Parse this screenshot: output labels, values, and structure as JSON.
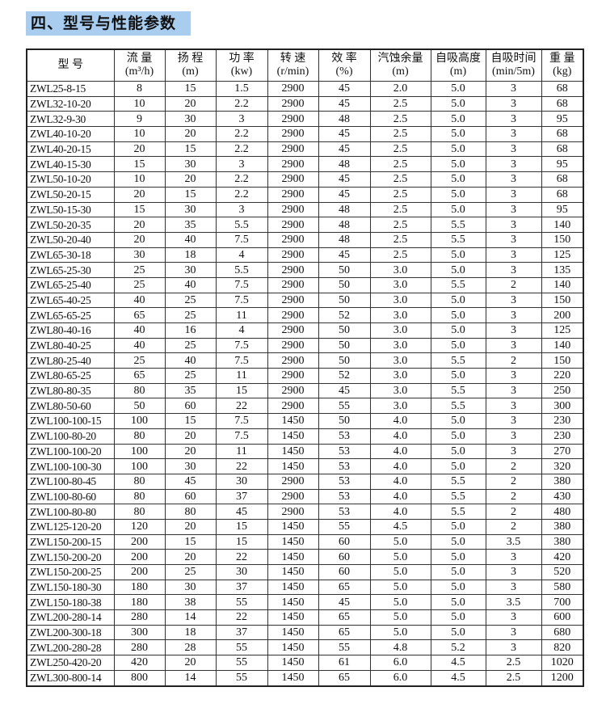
{
  "title": "四、型号与性能参数",
  "columns": [
    {
      "name": "型 号",
      "unit": ""
    },
    {
      "name": "流 量",
      "unit": "(m³/h)"
    },
    {
      "name": "扬 程",
      "unit": "(m)"
    },
    {
      "name": "功 率",
      "unit": "(kw)"
    },
    {
      "name": "转 速",
      "unit": "(r/min)"
    },
    {
      "name": "效 率",
      "unit": "(%)"
    },
    {
      "name": "汽蚀余量",
      "unit": "(m)"
    },
    {
      "name": "自吸高度",
      "unit": "(m)"
    },
    {
      "name": "自吸时间",
      "unit": "(min/5m)"
    },
    {
      "name": "重 量",
      "unit": "(kg)"
    }
  ],
  "rows": [
    [
      "ZWL25-8-15",
      "8",
      "15",
      "1.5",
      "2900",
      "45",
      "2.0",
      "5.0",
      "3",
      "68"
    ],
    [
      "ZWL32-10-20",
      "10",
      "20",
      "2.2",
      "2900",
      "45",
      "2.5",
      "5.0",
      "3",
      "68"
    ],
    [
      "ZWL32-9-30",
      "9",
      "30",
      "3",
      "2900",
      "48",
      "2.5",
      "5.0",
      "3",
      "95"
    ],
    [
      "ZWL40-10-20",
      "10",
      "20",
      "2.2",
      "2900",
      "45",
      "2.5",
      "5.0",
      "3",
      "68"
    ],
    [
      "ZWL40-20-15",
      "20",
      "15",
      "2.2",
      "2900",
      "45",
      "2.5",
      "5.0",
      "3",
      "68"
    ],
    [
      "ZWL40-15-30",
      "15",
      "30",
      "3",
      "2900",
      "48",
      "2.5",
      "5.0",
      "3",
      "95"
    ],
    [
      "ZWL50-10-20",
      "10",
      "20",
      "2.2",
      "2900",
      "45",
      "2.5",
      "5.0",
      "3",
      "68"
    ],
    [
      "ZWL50-20-15",
      "20",
      "15",
      "2.2",
      "2900",
      "45",
      "2.5",
      "5.0",
      "3",
      "68"
    ],
    [
      "ZWL50-15-30",
      "15",
      "30",
      "3",
      "2900",
      "48",
      "2.5",
      "5.0",
      "3",
      "95"
    ],
    [
      "ZWL50-20-35",
      "20",
      "35",
      "5.5",
      "2900",
      "48",
      "2.5",
      "5.5",
      "3",
      "140"
    ],
    [
      "ZWL50-20-40",
      "20",
      "40",
      "7.5",
      "2900",
      "48",
      "2.5",
      "5.5",
      "3",
      "150"
    ],
    [
      "ZWL65-30-18",
      "30",
      "18",
      "4",
      "2900",
      "45",
      "2.5",
      "5.0",
      "3",
      "125"
    ],
    [
      "ZWL65-25-30",
      "25",
      "30",
      "5.5",
      "2900",
      "50",
      "3.0",
      "5.0",
      "3",
      "135"
    ],
    [
      "ZWL65-25-40",
      "25",
      "40",
      "7.5",
      "2900",
      "50",
      "3.0",
      "5.5",
      "2",
      "140"
    ],
    [
      "ZWL65-40-25",
      "40",
      "25",
      "7.5",
      "2900",
      "50",
      "3.0",
      "5.0",
      "3",
      "150"
    ],
    [
      "ZWL65-65-25",
      "65",
      "25",
      "11",
      "2900",
      "52",
      "3.0",
      "5.0",
      "3",
      "200"
    ],
    [
      "ZWL80-40-16",
      "40",
      "16",
      "4",
      "2900",
      "50",
      "3.0",
      "5.0",
      "3",
      "125"
    ],
    [
      "ZWL80-40-25",
      "40",
      "25",
      "7.5",
      "2900",
      "50",
      "3.0",
      "5.0",
      "3",
      "140"
    ],
    [
      "ZWL80-25-40",
      "25",
      "40",
      "7.5",
      "2900",
      "50",
      "3.0",
      "5.5",
      "2",
      "150"
    ],
    [
      "ZWL80-65-25",
      "65",
      "25",
      "11",
      "2900",
      "52",
      "3.0",
      "5.0",
      "3",
      "220"
    ],
    [
      "ZWL80-80-35",
      "80",
      "35",
      "15",
      "2900",
      "45",
      "3.0",
      "5.5",
      "3",
      "250"
    ],
    [
      "ZWL80-50-60",
      "50",
      "60",
      "22",
      "2900",
      "55",
      "3.0",
      "5.5",
      "3",
      "300"
    ],
    [
      "ZWL100-100-15",
      "100",
      "15",
      "7.5",
      "1450",
      "50",
      "4.0",
      "5.0",
      "3",
      "230"
    ],
    [
      "ZWL100-80-20",
      "80",
      "20",
      "7.5",
      "1450",
      "53",
      "4.0",
      "5.0",
      "3",
      "230"
    ],
    [
      "ZWL100-100-20",
      "100",
      "20",
      "11",
      "1450",
      "53",
      "4.0",
      "5.0",
      "3",
      "270"
    ],
    [
      "ZWL100-100-30",
      "100",
      "30",
      "22",
      "1450",
      "53",
      "4.0",
      "5.0",
      "2",
      "320"
    ],
    [
      "ZWL100-80-45",
      "80",
      "45",
      "30",
      "2900",
      "53",
      "4.0",
      "5.5",
      "2",
      "380"
    ],
    [
      "ZWL100-80-60",
      "80",
      "60",
      "37",
      "2900",
      "53",
      "4.0",
      "5.5",
      "2",
      "430"
    ],
    [
      "ZWL100-80-80",
      "80",
      "80",
      "45",
      "2900",
      "53",
      "4.0",
      "5.5",
      "2",
      "480"
    ],
    [
      "ZWL125-120-20",
      "120",
      "20",
      "15",
      "1450",
      "55",
      "4.5",
      "5.0",
      "2",
      "380"
    ],
    [
      "ZWL150-200-15",
      "200",
      "15",
      "15",
      "1450",
      "60",
      "5.0",
      "5.0",
      "3.5",
      "380"
    ],
    [
      "ZWL150-200-20",
      "200",
      "20",
      "22",
      "1450",
      "60",
      "5.0",
      "5.0",
      "3",
      "420"
    ],
    [
      "ZWL150-200-25",
      "200",
      "25",
      "30",
      "1450",
      "60",
      "5.0",
      "5.0",
      "3",
      "520"
    ],
    [
      "ZWL150-180-30",
      "180",
      "30",
      "37",
      "1450",
      "65",
      "5.0",
      "5.0",
      "3",
      "580"
    ],
    [
      "ZWL150-180-38",
      "180",
      "38",
      "55",
      "1450",
      "45",
      "5.0",
      "5.0",
      "3.5",
      "700"
    ],
    [
      "ZWL200-280-14",
      "280",
      "14",
      "22",
      "1450",
      "65",
      "5.0",
      "5.0",
      "3",
      "600"
    ],
    [
      "ZWL200-300-18",
      "300",
      "18",
      "37",
      "1450",
      "65",
      "5.0",
      "5.0",
      "3",
      "680"
    ],
    [
      "ZWL200-280-28",
      "280",
      "28",
      "55",
      "1450",
      "55",
      "4.8",
      "5.2",
      "3",
      "820"
    ],
    [
      "ZWL250-420-20",
      "420",
      "20",
      "55",
      "1450",
      "61",
      "6.0",
      "4.5",
      "2.5",
      "1020"
    ],
    [
      "ZWL300-800-14",
      "800",
      "14",
      "55",
      "1450",
      "65",
      "6.0",
      "4.5",
      "2.5",
      "1200"
    ]
  ]
}
